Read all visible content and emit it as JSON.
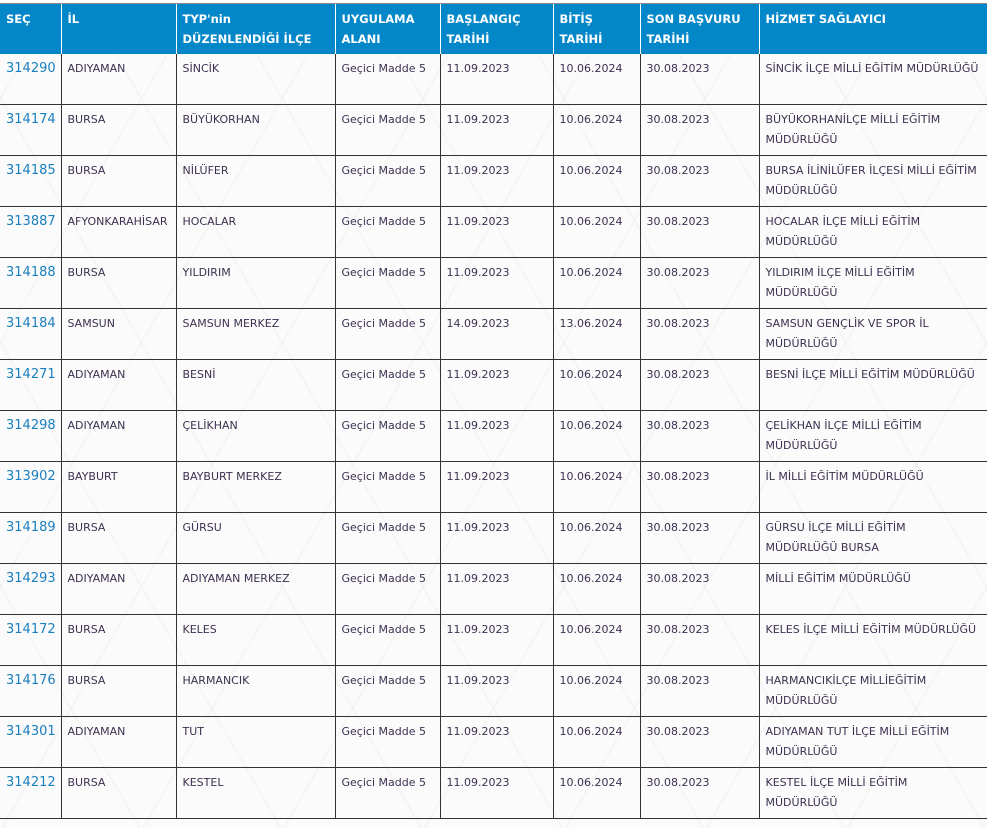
{
  "table": {
    "headers": [
      [
        "SEÇ"
      ],
      [
        "İL"
      ],
      [
        "TYP'nin",
        "DÜZENLENDİĞİ İLÇE"
      ],
      [
        "UYGULAMA",
        "ALANI"
      ],
      [
        "BAŞLANGIÇ",
        "TARİHİ"
      ],
      [
        "BİTİŞ",
        "TARİHİ"
      ],
      [
        "SON BAŞVURU",
        "TARİHİ"
      ],
      [
        "HİZMET SAĞLAYICI"
      ]
    ],
    "rows": [
      [
        "314290",
        "ADIYAMAN",
        "SİNCİK",
        "Geçici Madde 5",
        "11.09.2023",
        "10.06.2024",
        "30.08.2023",
        "SİNCİK İLÇE MİLLİ EĞİTİM MÜDÜRLÜĞÜ"
      ],
      [
        "314174",
        "BURSA",
        "BÜYÜKORHAN",
        "Geçici Madde 5",
        "11.09.2023",
        "10.06.2024",
        "30.08.2023",
        "BÜYÜKORHANİLÇE MİLLİ EĞİTİM MÜDÜRLÜĞÜ"
      ],
      [
        "314185",
        "BURSA",
        "NİLÜFER",
        "Geçici Madde 5",
        "11.09.2023",
        "10.06.2024",
        "30.08.2023",
        "BURSA İLİNİLÜFER İLÇESİ MİLLİ EĞİTİM MÜDÜRLÜĞÜ"
      ],
      [
        "313887",
        "AFYONKARAHİSAR",
        "HOCALAR",
        "Geçici Madde 5",
        "11.09.2023",
        "10.06.2024",
        "30.08.2023",
        "HOCALAR İLÇE MİLLİ EĞİTİM MÜDÜRLÜĞÜ"
      ],
      [
        "314188",
        "BURSA",
        "YILDIRIM",
        "Geçici Madde 5",
        "11.09.2023",
        "10.06.2024",
        "30.08.2023",
        "YILDIRIM İLÇE MİLLİ EĞİTİM MÜDÜRLÜĞÜ"
      ],
      [
        "314184",
        "SAMSUN",
        "SAMSUN MERKEZ",
        "Geçici Madde 5",
        "14.09.2023",
        "13.06.2024",
        "30.08.2023",
        "SAMSUN GENÇLİK VE SPOR İL MÜDÜRLÜĞÜ"
      ],
      [
        "314271",
        "ADIYAMAN",
        "BESNİ",
        "Geçici Madde 5",
        "11.09.2023",
        "10.06.2024",
        "30.08.2023",
        "BESNİ İLÇE MİLLİ EĞİTİM MÜDÜRLÜĞÜ"
      ],
      [
        "314298",
        "ADIYAMAN",
        "ÇELİKHAN",
        "Geçici Madde 5",
        "11.09.2023",
        "10.06.2024",
        "30.08.2023",
        "ÇELİKHAN İLÇE MİLLİ EĞİTİM MÜDÜRLÜĞÜ"
      ],
      [
        "313902",
        "BAYBURT",
        "BAYBURT MERKEZ",
        "Geçici Madde 5",
        "11.09.2023",
        "10.06.2024",
        "30.08.2023",
        "İL MİLLİ EĞİTİM MÜDÜRLÜĞÜ"
      ],
      [
        "314189",
        "BURSA",
        "GÜRSU",
        "Geçici Madde 5",
        "11.09.2023",
        "10.06.2024",
        "30.08.2023",
        "GÜRSU İLÇE MİLLİ EĞİTİM MÜDÜRLÜĞÜ BURSA"
      ],
      [
        "314293",
        "ADIYAMAN",
        "ADIYAMAN MERKEZ",
        "Geçici Madde 5",
        "11.09.2023",
        "10.06.2024",
        "30.08.2023",
        "MİLLİ EĞİTİM MÜDÜRLÜĞÜ"
      ],
      [
        "314172",
        "BURSA",
        "KELES",
        "Geçici Madde 5",
        "11.09.2023",
        "10.06.2024",
        "30.08.2023",
        "KELES İLÇE MİLLİ EĞİTİM MÜDÜRLÜĞÜ"
      ],
      [
        "314176",
        "BURSA",
        "HARMANCIK",
        "Geçici Madde 5",
        "11.09.2023",
        "10.06.2024",
        "30.08.2023",
        "HARMANCIKİLÇE MİLLİEĞİTİM MÜDÜRLÜĞÜ"
      ],
      [
        "314301",
        "ADIYAMAN",
        "TUT",
        "Geçici Madde 5",
        "11.09.2023",
        "10.06.2024",
        "30.08.2023",
        "ADIYAMAN TUT İLÇE MİLLİ EĞİTİM MÜDÜRLÜĞÜ"
      ],
      [
        "314212",
        "BURSA",
        "KESTEL",
        "Geçici Madde 5",
        "11.09.2023",
        "10.06.2024",
        "30.08.2023",
        "KESTEL İLÇE MİLLİ EĞİTİM MÜDÜRLÜĞÜ"
      ]
    ]
  },
  "colors": {
    "header_bg": "#0387c9",
    "link": "#1a7fc0",
    "text": "#3d3050"
  }
}
